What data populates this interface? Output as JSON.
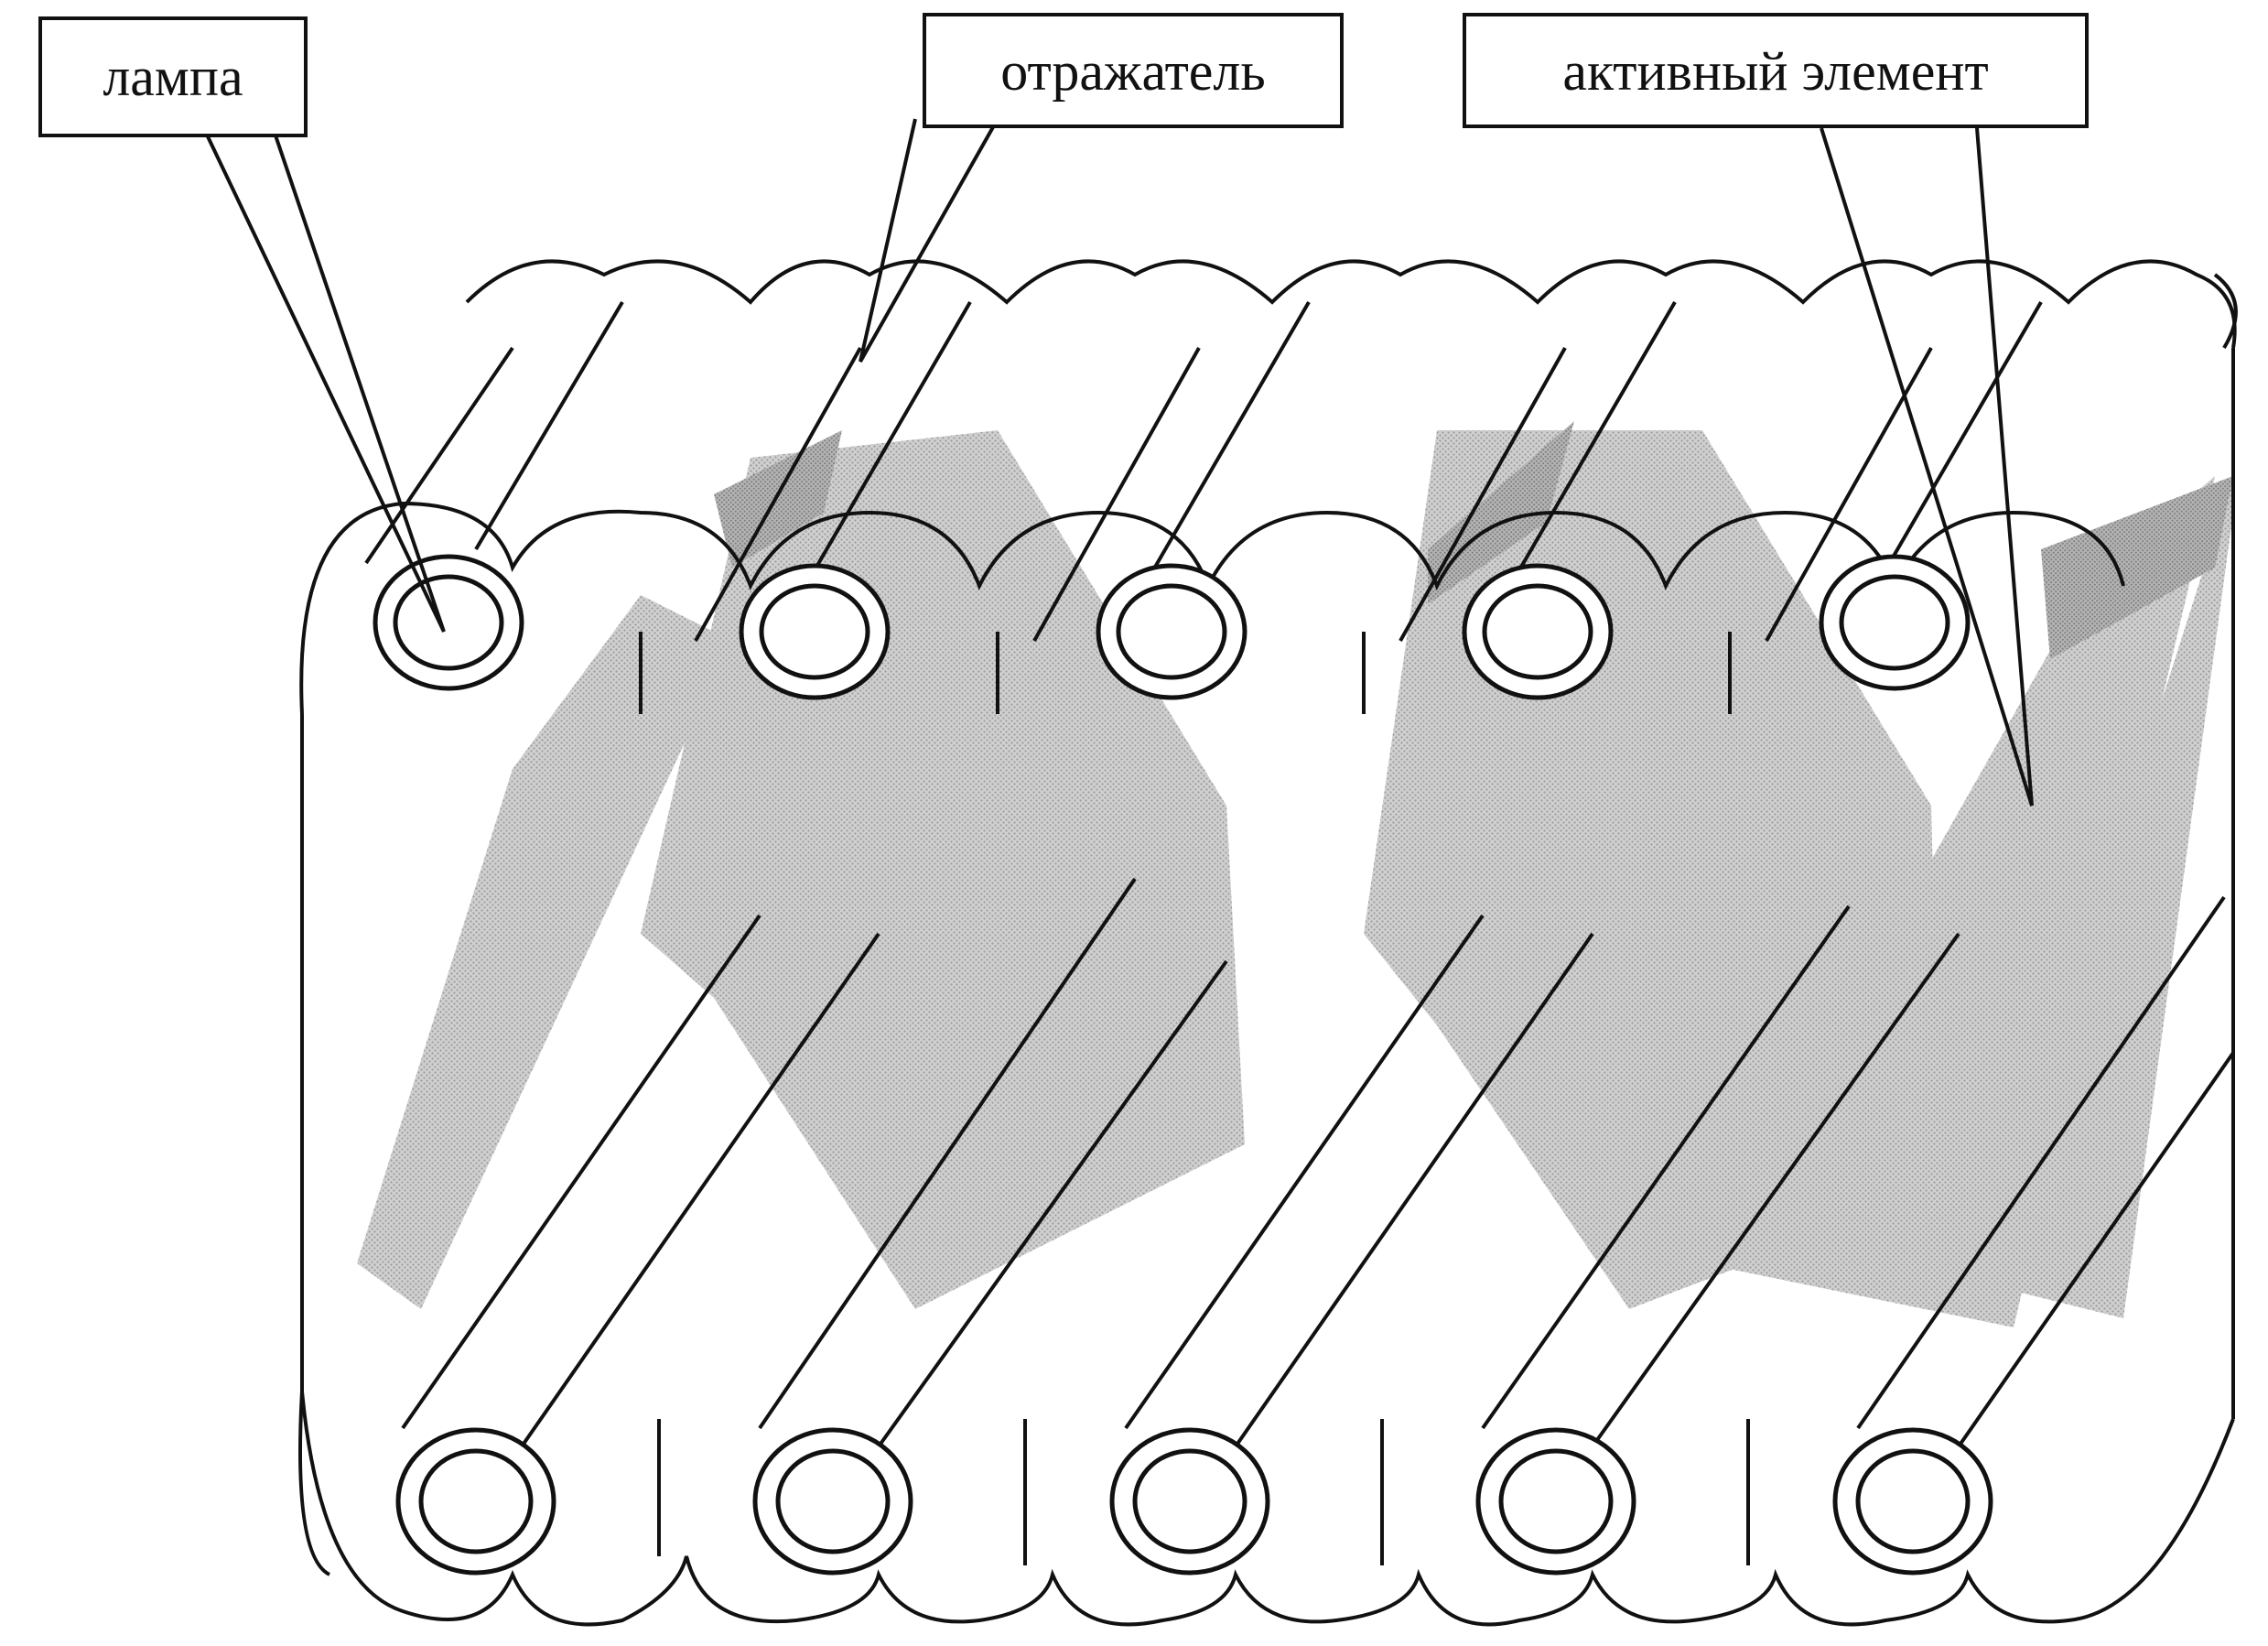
{
  "labels": {
    "lamp": "лампа",
    "reflector": "отражатель",
    "active_element": "активный элемент"
  },
  "colors": {
    "ink": "#111111",
    "gain_medium": "#b4b4b4",
    "background": "#ffffff"
  },
  "lamp_counts": {
    "top_row": 5,
    "bottom_row": 5
  }
}
